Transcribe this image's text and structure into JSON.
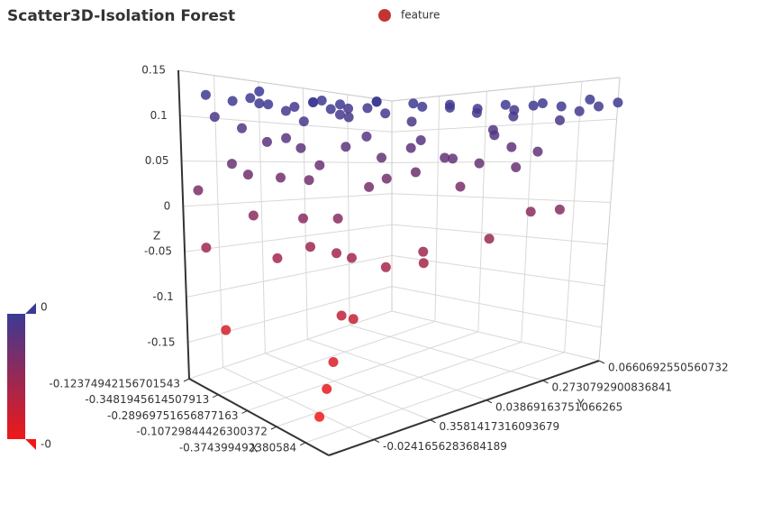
{
  "chart_data": {
    "type": "scatter3d",
    "title": "Scatter3D-Isolation Forest",
    "x_label": "X",
    "y_label": "Y",
    "z_label": "Z",
    "x_categories": [
      "-0.12374942156701543",
      null,
      null,
      null,
      null,
      "-0.3481945614507913",
      null,
      null,
      null,
      null,
      "-0.28969751656877163",
      null,
      null,
      null,
      null,
      "-0.10729844426300372",
      null,
      null,
      null,
      null,
      "-0.374399492380584",
      null,
      null,
      null,
      null
    ],
    "y_categories": [
      "0.0660692550560732",
      null,
      null,
      null,
      null,
      "0.2730792900836841",
      null,
      null,
      null,
      null,
      "0.0386916375106626​5",
      null,
      null,
      null,
      null,
      "0.3581417316093679",
      null,
      null,
      null,
      null,
      "-0.0241656283684189",
      null,
      null,
      null,
      null
    ],
    "zlim": [
      -0.19,
      0.15
    ],
    "zticks": [
      -0.15,
      -0.1,
      -0.05,
      0,
      0.05,
      0.1,
      0.15
    ],
    "visual_map": {
      "max_label": "0",
      "min_label": "-0",
      "colors": [
        "#f01818",
        "#3b3a94"
      ]
    },
    "series": [
      {
        "name": "feature",
        "color": "#c23531",
        "values": [
          [
            1,
            22,
            0.125
          ],
          [
            2,
            20,
            0.12
          ],
          [
            3,
            23,
            0.1
          ],
          [
            4,
            19,
            0.118
          ],
          [
            5,
            21,
            0.122
          ],
          [
            6,
            18,
            0.11
          ],
          [
            7,
            22,
            0.128
          ],
          [
            8,
            17,
            0.12
          ],
          [
            9,
            20,
            0.113
          ],
          [
            10,
            16,
            0.118
          ],
          [
            11,
            19,
            0.12
          ],
          [
            12,
            14,
            0.122
          ],
          [
            13,
            18,
            0.112
          ],
          [
            2,
            16,
            0.12
          ],
          [
            4,
            13,
            0.125
          ],
          [
            6,
            12,
            0.11
          ],
          [
            3,
            10,
            0.12
          ],
          [
            8,
            11,
            0.118
          ],
          [
            10,
            8,
            0.125
          ],
          [
            12,
            6,
            0.12
          ],
          [
            14,
            5,
            0.118
          ],
          [
            16,
            4,
            0.122
          ],
          [
            18,
            3,
            0.12
          ],
          [
            20,
            2,
            0.118
          ],
          [
            22,
            1,
            0.125
          ],
          [
            23,
            3,
            0.11
          ],
          [
            21,
            5,
            0.12
          ],
          [
            19,
            6,
            0.113
          ],
          [
            17,
            8,
            0.11
          ],
          [
            15,
            9,
            0.12
          ],
          [
            13,
            10,
            0.118
          ],
          [
            11,
            12,
            0.11
          ],
          [
            9,
            14,
            0.105
          ],
          [
            24,
            2,
            0.115
          ],
          [
            24,
            0,
            0.12
          ],
          [
            22,
            4,
            0.1
          ],
          [
            20,
            7,
            0.105
          ],
          [
            5,
            15,
            0.1
          ],
          [
            7,
            9,
            0.128
          ],
          [
            14,
            12,
            0.1
          ],
          [
            1,
            18,
            0.09
          ],
          [
            3,
            15,
            0.08
          ],
          [
            6,
            20,
            0.075
          ],
          [
            10,
            20,
            0.07
          ],
          [
            12,
            17,
            0.072
          ],
          [
            5,
            8,
            0.085
          ],
          [
            9,
            6,
            0.08
          ],
          [
            15,
            4,
            0.085
          ],
          [
            18,
            5,
            0.07
          ],
          [
            20,
            9,
            0.09
          ],
          [
            22,
            6,
            0.065
          ],
          [
            23,
            9,
            0.05
          ],
          [
            17,
            11,
            0.06
          ],
          [
            13,
            14,
            0.06
          ],
          [
            8,
            16,
            0.05
          ],
          [
            4,
            22,
            0.05
          ],
          [
            16,
            13,
            0.045
          ],
          [
            11,
            9,
            0.07
          ],
          [
            19,
            12,
            0.06
          ],
          [
            21,
            11,
            0.055
          ],
          [
            2,
            24,
            0.02
          ],
          [
            6,
            22,
            0.04
          ],
          [
            9,
            18,
            0.035
          ],
          [
            10,
            22,
            0.04
          ],
          [
            14,
            16,
            0.03
          ],
          [
            16,
            16,
            0.04
          ],
          [
            18,
            10,
            0.028
          ],
          [
            24,
            5,
            0.0
          ],
          [
            23,
            7,
            0.0
          ],
          [
            8,
            23,
            0.0
          ],
          [
            12,
            21,
            0.0
          ],
          [
            14,
            19,
            0.0
          ],
          [
            3,
            24,
            -0.04
          ],
          [
            9,
            21,
            -0.045
          ],
          [
            12,
            20,
            -0.03
          ],
          [
            13,
            18,
            -0.038
          ],
          [
            15,
            18,
            -0.04
          ],
          [
            19,
            14,
            -0.035
          ],
          [
            22,
            10,
            -0.025
          ],
          [
            18,
            13,
            -0.05
          ],
          [
            17,
            16,
            -0.05
          ],
          [
            6,
            24,
            -0.12
          ],
          [
            16,
            18,
            -0.1
          ],
          [
            17,
            20,
            -0.09
          ],
          [
            18,
            21,
            -0.13
          ],
          [
            19,
            22,
            -0.15
          ],
          [
            20,
            23,
            -0.17
          ]
        ]
      }
    ]
  }
}
